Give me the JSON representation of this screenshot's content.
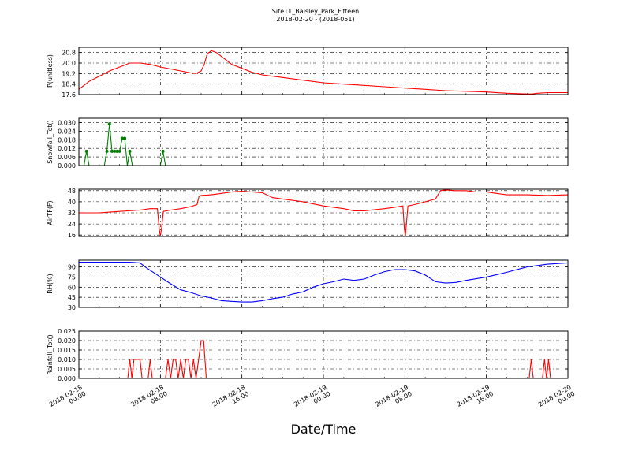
{
  "figure": {
    "title": "Site11_Baisley_Park_Fifteen",
    "subtitle": "2018-02-20 - (2018-051)",
    "xlabel": "Date/Time",
    "x_ticks": [
      "2018-02-18\n00:00",
      "2018-02-18\n08:00",
      "2018-02-18\n16:00",
      "2018-02-19\n00:00",
      "2018-02-19\n08:00",
      "2018-02-19\n16:00",
      "2018-02-20\n00:00"
    ]
  },
  "chart_data": [
    {
      "type": "line",
      "ylabel": "P(unitless)",
      "color": "#ff0000",
      "ylim": [
        17.6,
        21.2
      ],
      "yticks": [
        "17.6",
        "18.4",
        "19.2",
        "20.0",
        "20.8"
      ],
      "markers": false,
      "grid": true,
      "xlim_hours": [
        0,
        48
      ],
      "series": [
        {
          "x": [
            0,
            0.5,
            1,
            1.5,
            2,
            3,
            4,
            5,
            6,
            7,
            8,
            9,
            10,
            11,
            11.5,
            12,
            12.3,
            12.6,
            13,
            13.5,
            14,
            14.5,
            15,
            16,
            17,
            18,
            20,
            22,
            24,
            26,
            28,
            30,
            32,
            34,
            36,
            38,
            40,
            42,
            44,
            44.5,
            45,
            46,
            48
          ],
          "y": [
            18.0,
            18.3,
            18.6,
            18.8,
            19.0,
            19.4,
            19.7,
            20.0,
            20.0,
            19.9,
            19.7,
            19.55,
            19.4,
            19.25,
            19.2,
            19.4,
            19.9,
            20.7,
            20.95,
            20.8,
            20.5,
            20.2,
            19.9,
            19.6,
            19.3,
            19.1,
            18.9,
            18.7,
            18.5,
            18.4,
            18.3,
            18.2,
            18.1,
            18.0,
            17.9,
            17.85,
            17.8,
            17.7,
            17.65,
            17.65,
            17.7,
            17.75,
            17.75
          ]
        }
      ]
    },
    {
      "type": "line",
      "ylabel": "Snowfall_Tot()",
      "color": "#007f00",
      "ylim": [
        0,
        0.033
      ],
      "yticks": [
        "0.000",
        "0.006",
        "0.012",
        "0.018",
        "0.024",
        "0.030"
      ],
      "markers": true,
      "grid": true,
      "xlim_hours": [
        0,
        48
      ],
      "series": [
        {
          "x": [
            0,
            0.5,
            0.75,
            1.0,
            2.5,
            2.75,
            3.0,
            3.25,
            3.5,
            3.75,
            4.0,
            4.25,
            4.5,
            4.75,
            5.0,
            5.25,
            5.5,
            8.0,
            8.25,
            8.5,
            48
          ],
          "y": [
            0,
            0,
            0.01,
            0,
            0,
            0.01,
            0.029,
            0.01,
            0.01,
            0.01,
            0.01,
            0.019,
            0.019,
            0.0,
            0.01,
            0,
            0,
            0,
            0.01,
            0,
            0
          ]
        }
      ]
    },
    {
      "type": "line",
      "ylabel": "AirTF(F)",
      "color": "#ff0000",
      "ylim": [
        15,
        49
      ],
      "yticks": [
        "16",
        "24",
        "32",
        "40",
        "48"
      ],
      "markers": false,
      "grid": true,
      "xlim_hours": [
        0,
        48
      ],
      "series": [
        {
          "x": [
            0,
            1,
            2,
            4,
            6,
            7,
            7.7,
            7.9,
            8.0,
            8.1,
            8.3,
            9,
            10,
            11,
            11.6,
            11.8,
            12,
            13,
            14,
            15,
            16,
            17,
            18,
            19,
            20,
            22,
            24,
            25,
            26,
            27,
            28,
            30,
            31,
            31.8,
            31.95,
            32.05,
            32.3,
            33,
            34,
            35,
            35.5,
            36,
            37,
            38,
            39,
            40,
            41,
            42,
            44,
            46,
            48
          ],
          "y": [
            32,
            32,
            32,
            33,
            34,
            35,
            35,
            20,
            15.5,
            20,
            33,
            34,
            35,
            36.5,
            38,
            44,
            44.5,
            45,
            46,
            47,
            47.5,
            47,
            46.5,
            43,
            42,
            40,
            37,
            36,
            35,
            33.5,
            33.5,
            35,
            36,
            37,
            20,
            16,
            37,
            38,
            40,
            42,
            48,
            48.5,
            48,
            48,
            47,
            47,
            46,
            45,
            45,
            44.5,
            45
          ]
        }
      ]
    },
    {
      "type": "line",
      "ylabel": "RH(%)",
      "color": "#0000ff",
      "ylim": [
        30,
        100
      ],
      "yticks": [
        "30",
        "45",
        "60",
        "75",
        "90"
      ],
      "markers": false,
      "grid": true,
      "xlim_hours": [
        0,
        48
      ],
      "series": [
        {
          "x": [
            0,
            2,
            4,
            5,
            6,
            6.5,
            7,
            7.5,
            8,
            9,
            10,
            11,
            12,
            13,
            14,
            15,
            16,
            17,
            18,
            19,
            20,
            21,
            22,
            23,
            24,
            25,
            26,
            27,
            28,
            29,
            30,
            31,
            32,
            33,
            34,
            35,
            36,
            37,
            38,
            40,
            42,
            44,
            46,
            48
          ],
          "y": [
            97,
            97,
            97,
            97,
            96,
            90,
            85,
            80,
            75,
            65,
            56,
            52,
            47,
            44,
            40,
            39,
            38,
            38,
            40,
            43,
            45,
            50,
            53,
            60,
            65,
            68,
            72,
            70,
            72,
            78,
            83,
            86,
            86,
            84,
            78,
            68,
            66,
            67,
            70,
            75,
            82,
            90,
            94,
            96
          ]
        }
      ]
    },
    {
      "type": "line",
      "ylabel": "Rainfall_Tot()",
      "color": "#ff0000",
      "ylim": [
        0,
        0.025
      ],
      "yticks": [
        "0.000",
        "0.005",
        "0.010",
        "0.015",
        "0.020",
        "0.025"
      ],
      "markers": false,
      "grid": true,
      "xlim_hours": [
        0,
        48
      ],
      "series": [
        {
          "x": [
            0,
            4.8,
            5.0,
            5.2,
            5.4,
            5.6,
            6.0,
            6.2,
            6.8,
            7.0,
            7.2,
            8.5,
            8.75,
            9.0,
            9.25,
            9.5,
            9.75,
            10.0,
            10.25,
            10.5,
            10.75,
            11.0,
            11.25,
            11.5,
            11.75,
            12.0,
            12.25,
            12.5,
            12.75,
            44.2,
            44.4,
            44.6,
            45.5,
            45.7,
            45.9,
            46.1,
            46.3,
            46.5,
            48
          ],
          "y": [
            0,
            0,
            0.01,
            0,
            0.01,
            0.01,
            0.01,
            0,
            0,
            0.01,
            0,
            0,
            0.01,
            0,
            0.01,
            0.01,
            0,
            0.01,
            0,
            0.01,
            0.01,
            0,
            0.01,
            0,
            0.01,
            0.02,
            0.02,
            0,
            0,
            0,
            0.01,
            0,
            0,
            0.01,
            0,
            0.01,
            0,
            0,
            0
          ]
        }
      ]
    }
  ]
}
